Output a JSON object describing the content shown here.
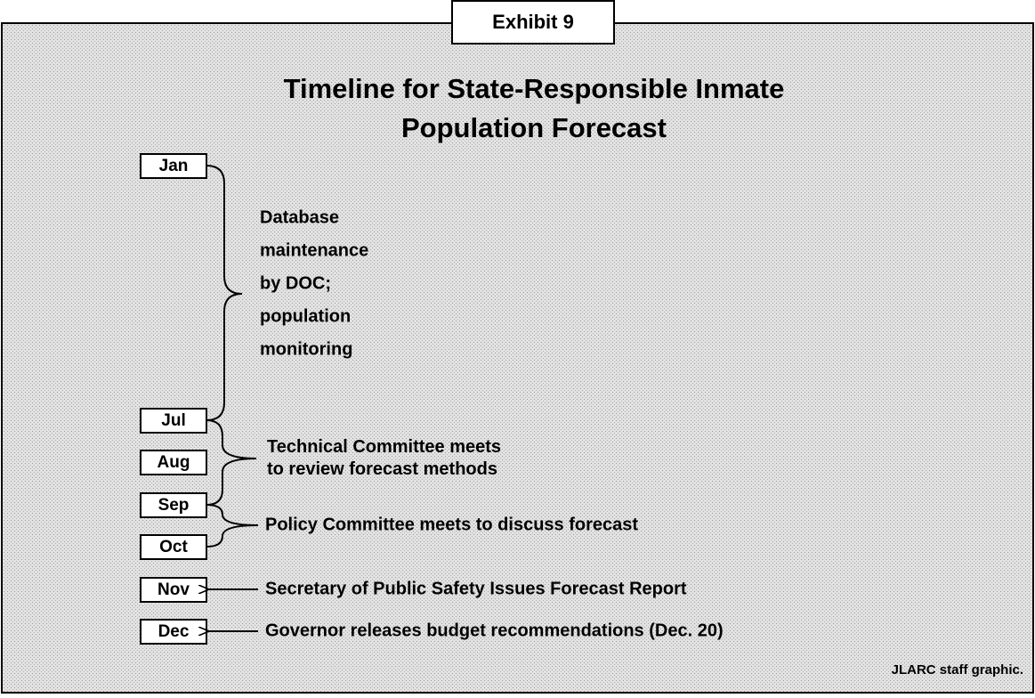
{
  "exhibit": "Exhibit 9",
  "title": [
    "Timeline for State-Responsible Inmate",
    "Population Forecast"
  ],
  "months": [
    "Jan",
    "Jul",
    "Aug",
    "Sep",
    "Oct",
    "Nov",
    "Dec"
  ],
  "events": [
    {
      "lines": [
        "Database",
        "maintenance",
        "by DOC;",
        "population",
        "monitoring"
      ]
    },
    {
      "lines": [
        "Technical Committee meets",
        "to review forecast methods"
      ]
    },
    {
      "lines": [
        "Policy Committee meets to discuss forecast"
      ]
    },
    {
      "lines": [
        "Secretary of Public Safety Issues Forecast Report"
      ]
    },
    {
      "lines": [
        "Governor releases budget recommendations (Dec. 20)"
      ]
    }
  ],
  "source": "JLARC staff graphic."
}
